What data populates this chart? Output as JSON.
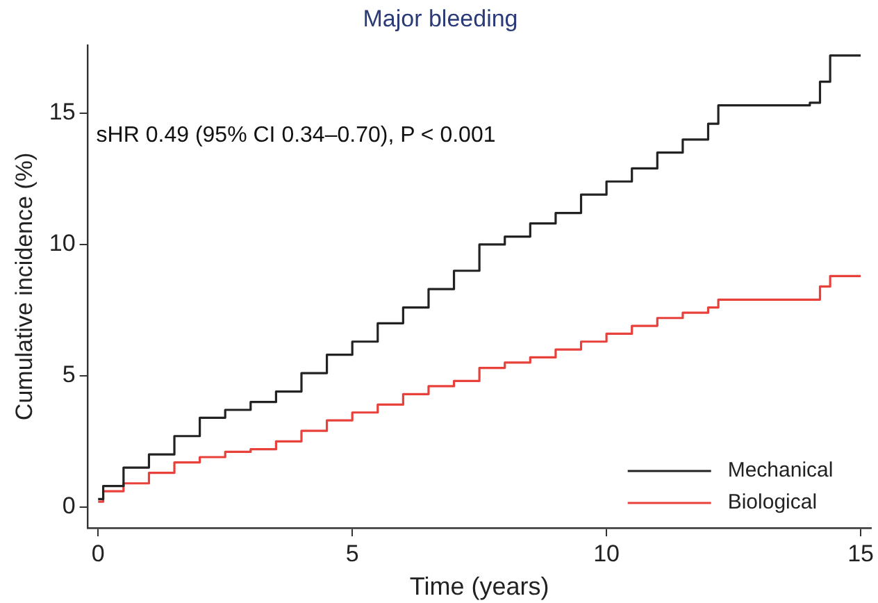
{
  "chart_data": {
    "type": "step",
    "title": "Major bleeding",
    "xlabel": "Time (years)",
    "ylabel": "Cumulative incidence (%)",
    "annotations": [
      "sHR 0.49 (95% CI 0.34–0.70), P < 0.001"
    ],
    "xlim": [
      -0.2,
      15.2
    ],
    "xticks": [
      0,
      5,
      10,
      15
    ],
    "ylim": [
      -0.8,
      17.6
    ],
    "yticks": [
      0,
      5,
      10,
      15
    ],
    "grid": false,
    "legend": "bottom right",
    "line_style": "solid",
    "marker": "none",
    "series": [
      {
        "name": "Mechanical",
        "color": "#222222",
        "x": [
          0,
          0.1,
          0.5,
          1,
          1.5,
          2,
          2.5,
          3,
          3.5,
          4,
          4.5,
          5,
          5.5,
          6,
          6.5,
          7,
          7.5,
          8,
          8.5,
          9,
          9.5,
          10,
          10.5,
          11,
          11.5,
          12,
          12.2,
          14,
          14.2,
          14.4,
          15
        ],
        "values": [
          0.3,
          0.8,
          1.5,
          2.0,
          2.7,
          3.4,
          3.7,
          4.0,
          4.4,
          5.1,
          5.8,
          6.3,
          7.0,
          7.6,
          8.3,
          9.0,
          10.0,
          10.3,
          10.8,
          11.2,
          11.9,
          12.4,
          12.9,
          13.5,
          14.0,
          14.6,
          15.3,
          15.4,
          16.2,
          17.2,
          17.2
        ]
      },
      {
        "name": "Biological",
        "color": "#e8413c",
        "x": [
          0,
          0.1,
          0.5,
          1,
          1.5,
          2,
          2.5,
          3,
          3.5,
          4,
          4.5,
          5,
          5.5,
          6,
          6.5,
          7,
          7.5,
          8,
          8.5,
          9,
          9.5,
          10,
          10.5,
          11,
          11.5,
          12,
          12.2,
          14,
          14.2,
          14.4,
          15
        ],
        "values": [
          0.2,
          0.6,
          0.9,
          1.3,
          1.7,
          1.9,
          2.1,
          2.2,
          2.5,
          2.9,
          3.3,
          3.6,
          3.9,
          4.3,
          4.6,
          4.8,
          5.3,
          5.5,
          5.7,
          6.0,
          6.3,
          6.6,
          6.9,
          7.2,
          7.4,
          7.6,
          7.9,
          7.9,
          8.4,
          8.8,
          8.8
        ]
      }
    ]
  }
}
